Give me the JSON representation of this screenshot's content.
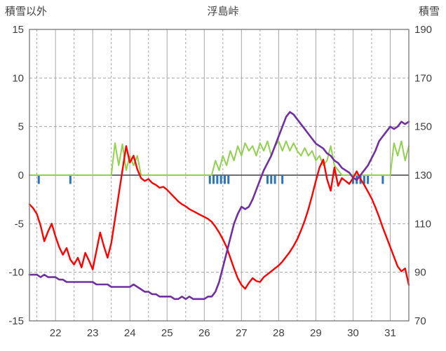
{
  "header": {
    "left_axis_title": "積雪以外",
    "title": "浮島峠",
    "right_axis_title": "積雪"
  },
  "chart_data": {
    "type": "line",
    "title": "浮島峠",
    "x_range": [
      21.3,
      31.5
    ],
    "x_start": 21.3,
    "x_step": 0.1,
    "x_ticks": [
      22,
      23,
      24,
      25,
      26,
      27,
      28,
      29,
      30,
      31
    ],
    "left_axis": {
      "label": "積雪以外",
      "range": [
        -15,
        15
      ],
      "ticks": [
        15,
        10,
        5,
        0,
        -5,
        -10,
        -15
      ]
    },
    "right_axis": {
      "label": "積雪",
      "range": [
        70,
        190
      ],
      "ticks": [
        190,
        170,
        150,
        130,
        110,
        90,
        70
      ]
    },
    "grid": {
      "h_dashed": [
        10,
        5,
        -5,
        -10
      ],
      "v_solid_days": [
        22,
        23,
        24,
        25,
        26,
        27,
        28,
        29,
        30,
        31
      ],
      "v_dashed_days": [
        21.5,
        22.5,
        23.5,
        24.5,
        25.5,
        26.5,
        27.5,
        28.5,
        29.5,
        30.5
      ]
    },
    "series": [
      {
        "name": "green-line",
        "axis": "left",
        "color": "#92D050",
        "width": 2,
        "values": [
          0,
          0,
          0,
          0,
          0,
          0,
          0,
          0,
          0,
          0,
          0,
          0,
          0,
          0,
          0,
          0,
          0,
          0,
          0,
          0,
          0,
          0,
          0,
          3.3,
          1.0,
          3.2,
          0.5,
          2.0,
          1.0,
          2.0,
          0,
          0,
          0,
          0,
          0,
          0,
          0,
          0,
          0,
          0,
          0,
          0,
          0,
          0,
          0,
          0,
          0,
          0,
          0,
          0,
          1.5,
          0.5,
          2.0,
          1.0,
          2.5,
          1.5,
          3.0,
          2.0,
          3.3,
          2.5,
          3.0,
          2.0,
          3.3,
          2.5,
          3.5,
          2.0,
          3.0,
          3.5,
          2.5,
          3.5,
          2.5,
          3.3,
          2.5,
          2.0,
          2.8,
          2.0,
          2.5,
          1.5,
          2.0,
          1.0,
          1.5,
          3.0,
          1.0,
          0.5,
          0,
          0,
          0,
          0,
          0,
          0,
          0,
          0,
          0,
          0,
          0,
          0,
          0,
          0,
          3.3,
          2.0,
          3.5,
          1.5,
          3.0
        ]
      },
      {
        "name": "red-line",
        "axis": "left",
        "color": "#FF0000",
        "width": 2.4,
        "values": [
          -3.0,
          -3.4,
          -4.0,
          -5.2,
          -6.8,
          -5.8,
          -5.0,
          -6.3,
          -7.4,
          -8.2,
          -7.5,
          -8.7,
          -9.2,
          -8.5,
          -9.5,
          -8.0,
          -8.8,
          -9.7,
          -7.8,
          -5.9,
          -7.3,
          -8.5,
          -7.0,
          -4.5,
          -2.0,
          0.5,
          3.0,
          1.3,
          2.0,
          0.6,
          -0.3,
          -0.6,
          -0.4,
          -0.8,
          -1.0,
          -1.3,
          -1.2,
          -1.5,
          -1.9,
          -2.3,
          -2.7,
          -3.0,
          -3.2,
          -3.5,
          -3.7,
          -3.9,
          -4.1,
          -4.3,
          -4.5,
          -4.8,
          -5.3,
          -5.9,
          -6.6,
          -7.4,
          -8.5,
          -9.6,
          -10.6,
          -11.3,
          -11.7,
          -11.1,
          -10.6,
          -10.9,
          -11.0,
          -10.5,
          -10.2,
          -9.9,
          -9.6,
          -9.3,
          -8.9,
          -8.4,
          -7.9,
          -7.3,
          -6.6,
          -5.7,
          -4.7,
          -3.5,
          -2.1,
          -0.6,
          0.8,
          1.6,
          -0.4,
          -1.6,
          0.8,
          -1.1,
          -0.3,
          -0.6,
          -0.9,
          -0.3,
          0.4,
          -0.4,
          -1.0,
          -1.7,
          -2.4,
          -3.3,
          -4.3,
          -5.4,
          -6.4,
          -7.4,
          -8.4,
          -9.4,
          -9.9,
          -9.6,
          -11.3
        ]
      },
      {
        "name": "purple-line",
        "axis": "right",
        "color": "#7030A0",
        "width": 2.6,
        "values": [
          89,
          89,
          89,
          88,
          89,
          88,
          88,
          88,
          87,
          87,
          86,
          86,
          86,
          86,
          86,
          86,
          86,
          86,
          85,
          85,
          85,
          85,
          84,
          84,
          84,
          84,
          84,
          84,
          85,
          84,
          83,
          82,
          82,
          81,
          81,
          80,
          80,
          80,
          80,
          79,
          79,
          80,
          79,
          80,
          79,
          79,
          79,
          79,
          80,
          80,
          82,
          86,
          92,
          98,
          104,
          110,
          114,
          117,
          116,
          117,
          120,
          124,
          128,
          132,
          135,
          138,
          142,
          146,
          150,
          154,
          156,
          155,
          153,
          151,
          149,
          147,
          145,
          143,
          142,
          141,
          139,
          138,
          136,
          135,
          133,
          132,
          131,
          129,
          128,
          130,
          132,
          134,
          137,
          140,
          144,
          146,
          148,
          150,
          149,
          150,
          152,
          151,
          152
        ]
      }
    ],
    "bars": {
      "name": "blue-ticks",
      "color": "#2E75B6",
      "height": -0.9,
      "x": [
        21.55,
        22.4,
        26.15,
        26.25,
        26.35,
        26.45,
        26.55,
        26.65,
        27.7,
        27.8,
        27.9,
        28.1,
        30.0,
        30.1,
        30.2,
        30.3,
        30.4,
        30.8
      ]
    },
    "colors": {
      "border": "#808080",
      "grid": "#A6A6A6",
      "zero_line": "#404040",
      "text": "#404040"
    }
  }
}
